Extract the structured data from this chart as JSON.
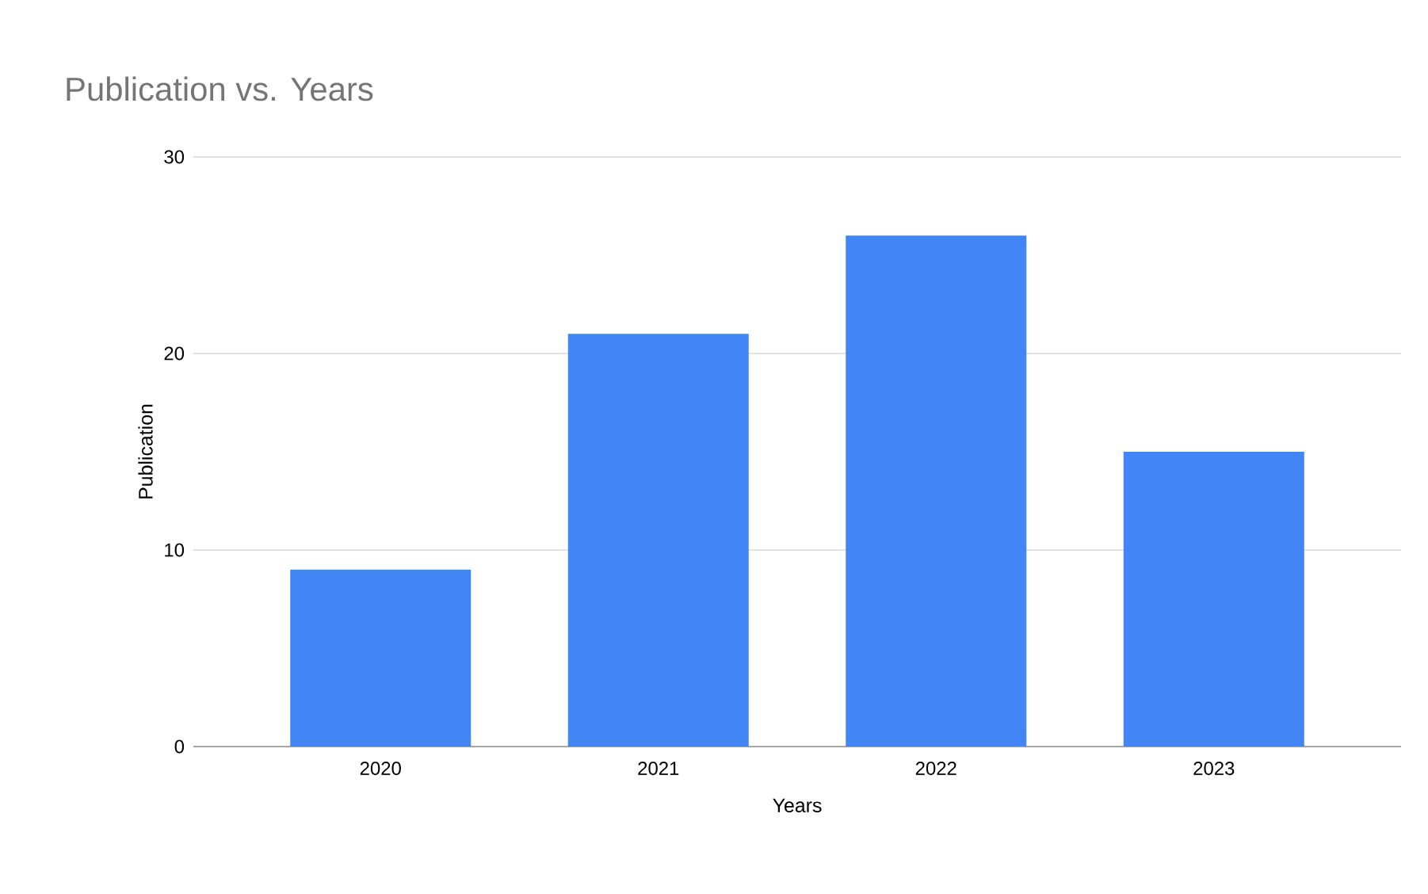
{
  "chart_data": {
    "type": "bar",
    "title": "Publication vs. Years",
    "xlabel": "Years",
    "ylabel": "Publication",
    "categories": [
      "2020",
      "2021",
      "2022",
      "2023"
    ],
    "values": [
      9,
      21,
      26,
      15
    ],
    "color": "#4285f4",
    "ylim": [
      0,
      30
    ],
    "yticks": [
      0,
      10,
      20,
      30
    ],
    "grid": "y"
  }
}
